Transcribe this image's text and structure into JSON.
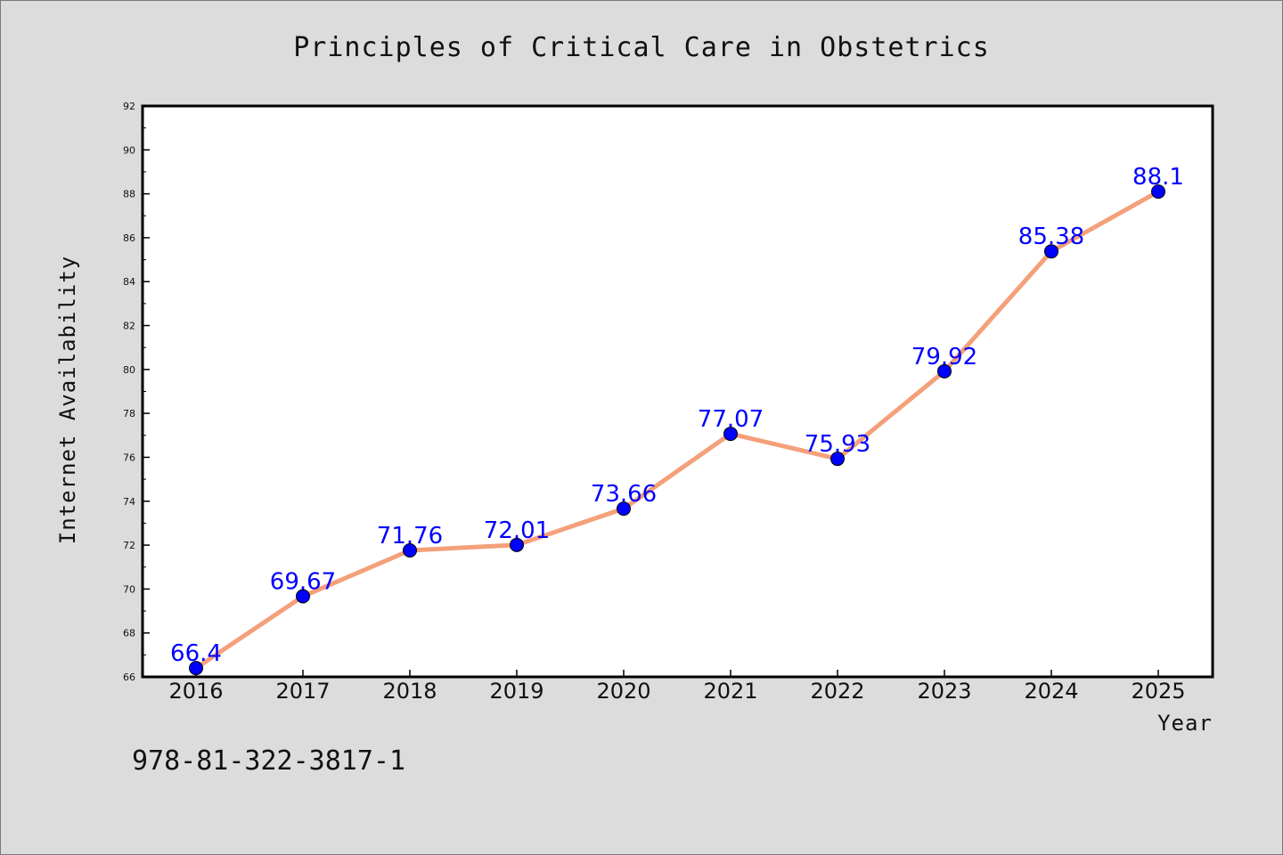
{
  "chart_data": {
    "type": "line",
    "title": "Principles of Critical Care in Obstetrics",
    "xlabel": "Year",
    "ylabel": "Internet Availability",
    "categories": [
      "2016",
      "2017",
      "2018",
      "2019",
      "2020",
      "2021",
      "2022",
      "2023",
      "2024",
      "2025"
    ],
    "values": [
      66.4,
      69.67,
      71.76,
      72.01,
      73.66,
      77.07,
      75.93,
      79.92,
      85.38,
      88.1
    ],
    "data_labels": [
      "66.4",
      "69.67",
      "71.76",
      "72.01",
      "73.66",
      "77.07",
      "75.93",
      "79.92",
      "85.38",
      "88.1"
    ],
    "ylim": [
      66,
      92
    ],
    "yticks": [
      "66",
      "68",
      "70",
      "72",
      "74",
      "76",
      "78",
      "80",
      "82",
      "84",
      "86",
      "88",
      "90",
      "92"
    ],
    "grid": false,
    "line_color": "#f4a07a",
    "marker_color": "#0000ff",
    "label_color": "#0000ff"
  },
  "footer_text": "978-81-322-3817-1"
}
